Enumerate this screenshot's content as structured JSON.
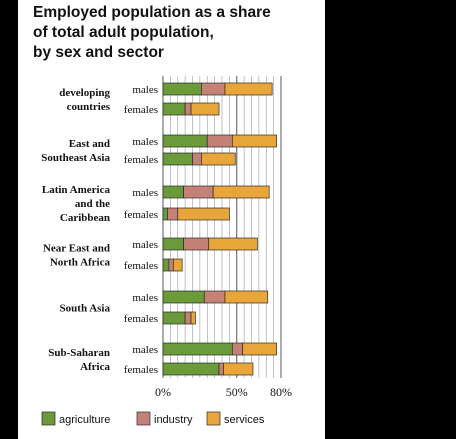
{
  "chart_data": {
    "type": "bar",
    "orientation": "horizontal",
    "stacked": true,
    "title_lines": [
      "Employed population as a share",
      "of total adult population,",
      "by sex and sector"
    ],
    "xlim": [
      0,
      80
    ],
    "x_ticks": [
      0,
      50,
      80
    ],
    "x_tick_labels": [
      "0%",
      "50%",
      "80%"
    ],
    "grid": true,
    "legend_position": "bottom",
    "colors": {
      "agriculture": "#6a9a3a",
      "industry": "#c48276",
      "services": "#e8a53a"
    },
    "series": [
      {
        "name": "agriculture",
        "color": "#6a9a3a"
      },
      {
        "name": "industry",
        "color": "#c48276"
      },
      {
        "name": "services",
        "color": "#e8a53a"
      }
    ],
    "groups": [
      {
        "label": [
          "developing",
          "countries"
        ],
        "rows": [
          {
            "sex": "males",
            "agriculture": 26,
            "industry": 16,
            "services": 32
          },
          {
            "sex": "females",
            "agriculture": 15,
            "industry": 4,
            "services": 19
          }
        ]
      },
      {
        "label": [
          "East and",
          "Southeast Asia"
        ],
        "rows": [
          {
            "sex": "males",
            "agriculture": 30,
            "industry": 17,
            "services": 30
          },
          {
            "sex": "females",
            "agriculture": 20,
            "industry": 6,
            "services": 23
          }
        ]
      },
      {
        "label": [
          "Latin America",
          "and the",
          "Caribbean"
        ],
        "rows": [
          {
            "sex": "males",
            "agriculture": 14,
            "industry": 20,
            "services": 38
          },
          {
            "sex": "females",
            "agriculture": 3,
            "industry": 7,
            "services": 35
          }
        ]
      },
      {
        "label": [
          "Near East and",
          "North Africa"
        ],
        "rows": [
          {
            "sex": "males",
            "agriculture": 14,
            "industry": 17,
            "services": 33
          },
          {
            "sex": "females",
            "agriculture": 4,
            "industry": 3,
            "services": 6
          }
        ]
      },
      {
        "label": [
          "South Asia"
        ],
        "rows": [
          {
            "sex": "males",
            "agriculture": 28,
            "industry": 14,
            "services": 29
          },
          {
            "sex": "females",
            "agriculture": 15,
            "industry": 4,
            "services": 3
          }
        ]
      },
      {
        "label": [
          "Sub-Saharan",
          "Africa"
        ],
        "rows": [
          {
            "sex": "males",
            "agriculture": 47,
            "industry": 7,
            "services": 23
          },
          {
            "sex": "females",
            "agriculture": 38,
            "industry": 3,
            "services": 20
          }
        ]
      }
    ]
  }
}
